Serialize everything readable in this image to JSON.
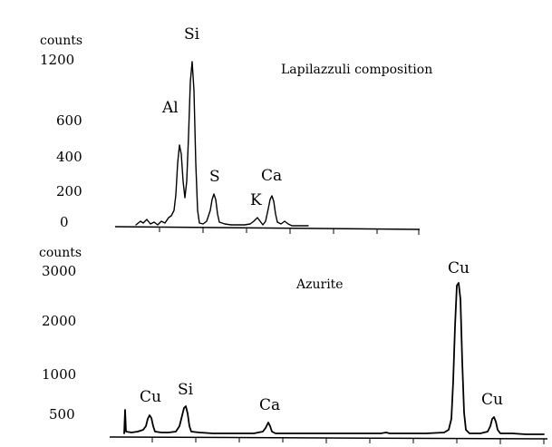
{
  "chart_data": [
    {
      "type": "line",
      "title": "Lapilazzuli composition",
      "ylabel": "counts",
      "xlabel": "",
      "yticks": [
        0,
        200,
        400,
        600,
        1200
      ],
      "peaks": [
        {
          "label": "Al",
          "height": 470
        },
        {
          "label": "Si",
          "height": 1180
        },
        {
          "label": "S",
          "height": 175
        },
        {
          "label": "K",
          "height": 45
        },
        {
          "label": "Ca",
          "height": 170
        }
      ]
    },
    {
      "type": "line",
      "title": "Azurite",
      "ylabel": "counts",
      "xlabel": "",
      "yticks": [
        500,
        1000,
        2000,
        3000
      ],
      "peaks": [
        {
          "label": "Cu",
          "height": 560
        },
        {
          "label": "Si",
          "height": 630
        },
        {
          "label": "Ca",
          "height": 520
        },
        {
          "label": "Cu",
          "height": 2800
        },
        {
          "label": "Cu",
          "height": 560
        }
      ]
    }
  ],
  "style": {
    "trace_color": "#000000",
    "background": "#ffffff"
  }
}
